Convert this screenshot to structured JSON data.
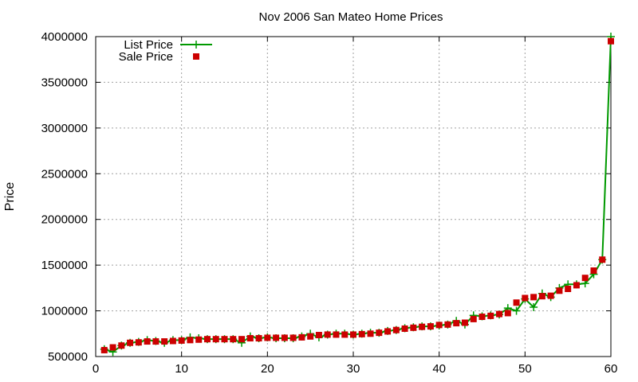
{
  "chart_data": {
    "type": "line",
    "title": "Nov 2006 San Mateo Home Prices",
    "xlabel": "",
    "ylabel": "Price",
    "xlim": [
      0,
      60
    ],
    "ylim": [
      500000,
      4000000
    ],
    "xticks": [
      0,
      10,
      20,
      30,
      40,
      50,
      60
    ],
    "yticks": [
      500000,
      1000000,
      1500000,
      2000000,
      2500000,
      3000000,
      3500000,
      4000000
    ],
    "grid": true,
    "legend_position": "top-left",
    "series": [
      {
        "name": "List Price",
        "style": "line-plus",
        "color": "#009900",
        "x": [
          1,
          2,
          3,
          4,
          5,
          6,
          7,
          8,
          9,
          10,
          11,
          12,
          13,
          14,
          15,
          16,
          17,
          18,
          19,
          20,
          21,
          22,
          23,
          24,
          25,
          26,
          27,
          28,
          29,
          30,
          31,
          32,
          33,
          34,
          35,
          36,
          37,
          38,
          39,
          40,
          41,
          42,
          43,
          44,
          45,
          46,
          47,
          48,
          49,
          50,
          51,
          52,
          53,
          54,
          55,
          56,
          57,
          58,
          59,
          60
        ],
        "y": [
          580000,
          550000,
          620000,
          650000,
          660000,
          680000,
          670000,
          650000,
          680000,
          680000,
          710000,
          700000,
          690000,
          690000,
          690000,
          690000,
          650000,
          720000,
          700000,
          710000,
          700000,
          700000,
          700000,
          720000,
          750000,
          710000,
          740000,
          750000,
          750000,
          740000,
          750000,
          760000,
          760000,
          780000,
          790000,
          810000,
          820000,
          830000,
          830000,
          840000,
          850000,
          890000,
          850000,
          950000,
          940000,
          950000,
          960000,
          1030000,
          1000000,
          1130000,
          1040000,
          1190000,
          1150000,
          1250000,
          1290000,
          1290000,
          1300000,
          1400000,
          1560000,
          4000000
        ]
      },
      {
        "name": "Sale Price",
        "style": "square",
        "color": "#cc0000",
        "x": [
          1,
          2,
          3,
          4,
          5,
          6,
          7,
          8,
          9,
          10,
          11,
          12,
          13,
          14,
          15,
          16,
          17,
          18,
          19,
          20,
          21,
          22,
          23,
          24,
          25,
          26,
          27,
          28,
          29,
          30,
          31,
          32,
          33,
          34,
          35,
          36,
          37,
          38,
          39,
          40,
          41,
          42,
          43,
          44,
          45,
          46,
          47,
          48,
          49,
          50,
          51,
          52,
          53,
          54,
          55,
          56,
          57,
          58,
          59,
          60
        ],
        "y": [
          570000,
          600000,
          620000,
          650000,
          655000,
          665000,
          665000,
          665000,
          670000,
          675000,
          680000,
          685000,
          690000,
          690000,
          690000,
          690000,
          690000,
          700000,
          700000,
          705000,
          705000,
          705000,
          705000,
          710000,
          720000,
          735000,
          740000,
          740000,
          740000,
          740000,
          745000,
          750000,
          760000,
          775000,
          790000,
          805000,
          815000,
          825000,
          830000,
          845000,
          850000,
          865000,
          870000,
          910000,
          935000,
          945000,
          965000,
          975000,
          1090000,
          1140000,
          1150000,
          1160000,
          1165000,
          1220000,
          1240000,
          1280000,
          1360000,
          1440000,
          1560000,
          3950000
        ]
      }
    ]
  }
}
